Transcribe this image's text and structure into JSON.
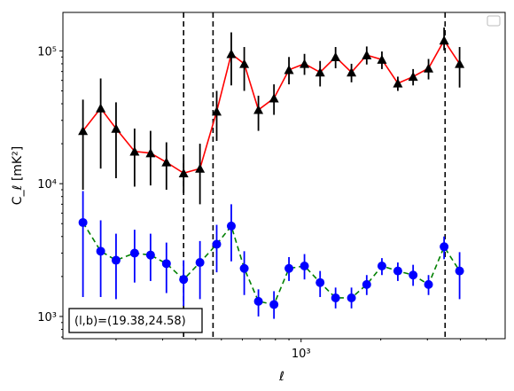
{
  "chart_data": {
    "type": "scatter",
    "xscale": "log",
    "yscale": "log",
    "xlabel": "ℓ",
    "ylabel": "C_ℓ  [mK²]",
    "xlim": [
      126,
      5900
    ],
    "ylim": [
      680,
      195000
    ],
    "x_ticks": [
      {
        "value": 1000,
        "label": "10³"
      }
    ],
    "y_ticks": [
      {
        "value": 1000,
        "label": "10³"
      },
      {
        "value": 10000,
        "label": "10⁴"
      },
      {
        "value": 100000,
        "label": "10⁵"
      }
    ],
    "legend": {
      "placement": "top-right",
      "entries": []
    },
    "annotation": "(l,b)=(19.38,24.58)",
    "vlines": [
      360,
      465,
      3500
    ],
    "series": [
      {
        "marker": "triangle",
        "marker_color": "#000000",
        "line_color": "#ff0000",
        "line_style": "solid",
        "errorbar_color": "#000000",
        "points": [
          {
            "x": 150,
            "y": 25000,
            "lo": 9000,
            "hi": 43000
          },
          {
            "x": 175,
            "y": 37000,
            "lo": 13000,
            "hi": 62000
          },
          {
            "x": 200,
            "y": 26000,
            "lo": 11000,
            "hi": 41000
          },
          {
            "x": 235,
            "y": 17500,
            "lo": 9500,
            "hi": 26000
          },
          {
            "x": 270,
            "y": 17000,
            "lo": 9700,
            "hi": 25000
          },
          {
            "x": 310,
            "y": 14500,
            "lo": 9000,
            "hi": 20500
          },
          {
            "x": 360,
            "y": 12000,
            "lo": 8500,
            "hi": 16500
          },
          {
            "x": 415,
            "y": 13000,
            "lo": 7000,
            "hi": 20000
          },
          {
            "x": 480,
            "y": 35000,
            "lo": 21000,
            "hi": 50000
          },
          {
            "x": 545,
            "y": 95000,
            "lo": 55000,
            "hi": 138000
          },
          {
            "x": 610,
            "y": 80000,
            "lo": 50000,
            "hi": 107000
          },
          {
            "x": 690,
            "y": 36000,
            "lo": 25000,
            "hi": 46000
          },
          {
            "x": 790,
            "y": 44000,
            "lo": 33000,
            "hi": 56000
          },
          {
            "x": 900,
            "y": 72000,
            "lo": 56000,
            "hi": 90000
          },
          {
            "x": 1030,
            "y": 80000,
            "lo": 66000,
            "hi": 95000
          },
          {
            "x": 1180,
            "y": 69000,
            "lo": 54000,
            "hi": 84000
          },
          {
            "x": 1350,
            "y": 90000,
            "lo": 74000,
            "hi": 107000
          },
          {
            "x": 1550,
            "y": 69000,
            "lo": 58000,
            "hi": 80000
          },
          {
            "x": 1770,
            "y": 93000,
            "lo": 79000,
            "hi": 108000
          },
          {
            "x": 2020,
            "y": 86000,
            "lo": 73000,
            "hi": 99000
          },
          {
            "x": 2320,
            "y": 57000,
            "lo": 50000,
            "hi": 64000
          },
          {
            "x": 2650,
            "y": 64000,
            "lo": 55000,
            "hi": 73000
          },
          {
            "x": 3030,
            "y": 74000,
            "lo": 61000,
            "hi": 87000
          },
          {
            "x": 3470,
            "y": 120000,
            "lo": 101000,
            "hi": 150000
          },
          {
            "x": 3970,
            "y": 80000,
            "lo": 53000,
            "hi": 107000
          }
        ]
      },
      {
        "marker": "circle",
        "marker_color": "#0000ff",
        "line_color": "#008000",
        "line_style": "dashed",
        "errorbar_color": "#0000ff",
        "points": [
          {
            "x": 150,
            "y": 5100,
            "lo": 1400,
            "hi": 8800
          },
          {
            "x": 175,
            "y": 3100,
            "lo": 1400,
            "hi": 5300
          },
          {
            "x": 200,
            "y": 2650,
            "lo": 1350,
            "hi": 4200
          },
          {
            "x": 235,
            "y": 3000,
            "lo": 1800,
            "hi": 4500
          },
          {
            "x": 270,
            "y": 2900,
            "lo": 1850,
            "hi": 4200
          },
          {
            "x": 310,
            "y": 2500,
            "lo": 1500,
            "hi": 3600
          },
          {
            "x": 360,
            "y": 1900,
            "lo": 1200,
            "hi": 2650
          },
          {
            "x": 415,
            "y": 2550,
            "lo": 1350,
            "hi": 3700
          },
          {
            "x": 480,
            "y": 3500,
            "lo": 2150,
            "hi": 4900
          },
          {
            "x": 545,
            "y": 4800,
            "lo": 2600,
            "hi": 7000
          },
          {
            "x": 610,
            "y": 2300,
            "lo": 1450,
            "hi": 3100
          },
          {
            "x": 690,
            "y": 1300,
            "lo": 1000,
            "hi": 1600
          },
          {
            "x": 790,
            "y": 1230,
            "lo": 960,
            "hi": 1550
          },
          {
            "x": 900,
            "y": 2300,
            "lo": 1850,
            "hi": 2800
          },
          {
            "x": 1030,
            "y": 2400,
            "lo": 1900,
            "hi": 2950
          },
          {
            "x": 1180,
            "y": 1800,
            "lo": 1400,
            "hi": 2200
          },
          {
            "x": 1350,
            "y": 1380,
            "lo": 1150,
            "hi": 1650
          },
          {
            "x": 1550,
            "y": 1380,
            "lo": 1150,
            "hi": 1650
          },
          {
            "x": 1770,
            "y": 1740,
            "lo": 1450,
            "hi": 2050
          },
          {
            "x": 2020,
            "y": 2400,
            "lo": 2050,
            "hi": 2750
          },
          {
            "x": 2320,
            "y": 2200,
            "lo": 1850,
            "hi": 2550
          },
          {
            "x": 2650,
            "y": 2050,
            "lo": 1700,
            "hi": 2450
          },
          {
            "x": 3030,
            "y": 1740,
            "lo": 1450,
            "hi": 2050
          },
          {
            "x": 3470,
            "y": 3350,
            "lo": 2700,
            "hi": 4000
          },
          {
            "x": 3970,
            "y": 2200,
            "lo": 1350,
            "hi": 3050
          }
        ]
      }
    ]
  }
}
